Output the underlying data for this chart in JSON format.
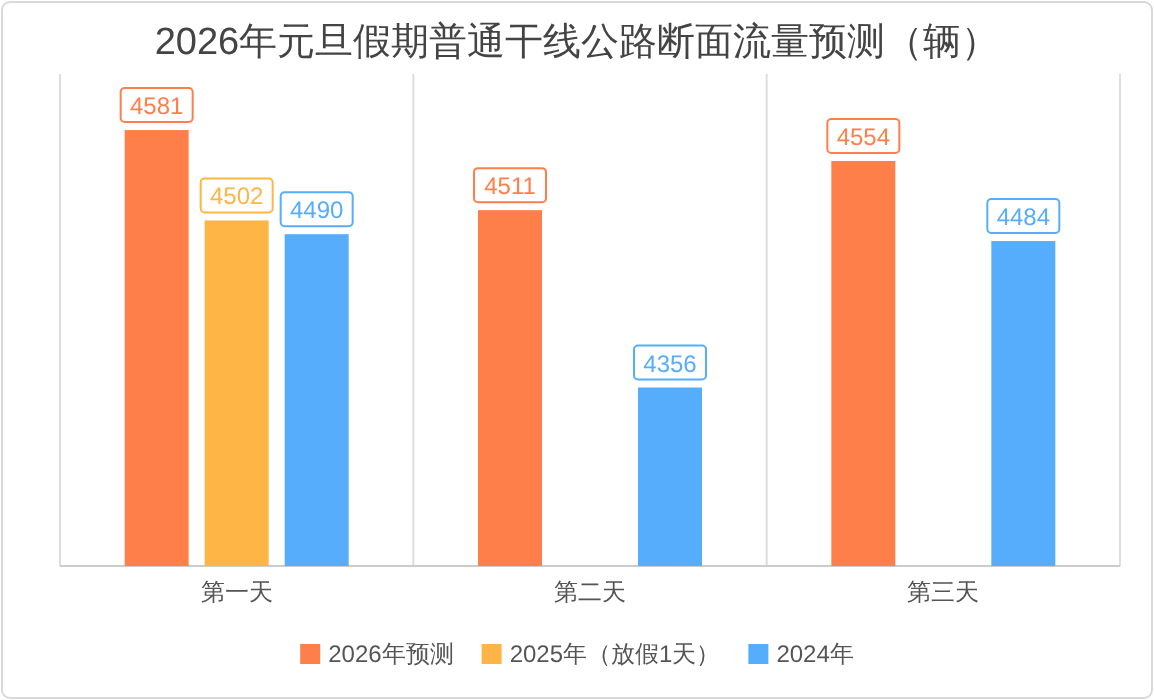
{
  "chart_data": {
    "type": "bar",
    "title": "2026年元旦假期普通干线公路断面流量预测（辆）",
    "categories": [
      "第一天",
      "第二天",
      "第三天"
    ],
    "series": [
      {
        "name": "2026年预测",
        "color": "#ff7f4a",
        "values": [
          4581,
          4511,
          4554
        ]
      },
      {
        "name": "2025年（放假1天）",
        "color": "#ffb446",
        "values": [
          4502,
          null,
          null
        ]
      },
      {
        "name": "2024年",
        "color": "#55adfc",
        "values": [
          4490,
          4356,
          4484
        ]
      }
    ],
    "ylim": [
      4200,
      4630
    ],
    "data_labels": true,
    "grid": "x",
    "legend": "bottom",
    "tick_labels": "x"
  }
}
